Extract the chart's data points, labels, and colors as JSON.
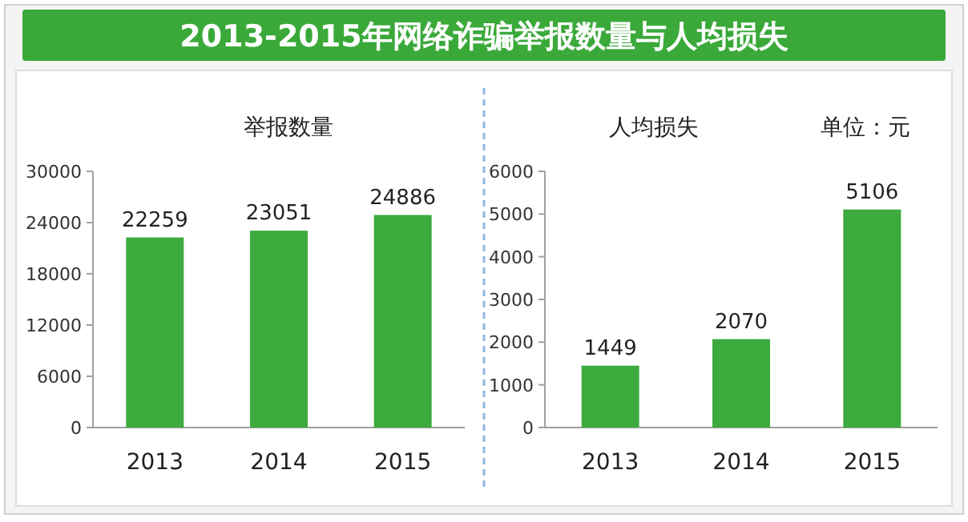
{
  "chart_data": [
    {
      "type": "bar",
      "title": "2013-2015年网络诈骗举报数量与人均损失",
      "subtitle": "举报数量",
      "categories": [
        "2013",
        "2014",
        "2015"
      ],
      "values": [
        22259,
        23051,
        24886
      ],
      "color": "#3daa3d",
      "ylim": [
        0,
        30000
      ],
      "yticks": [
        0,
        6000,
        12000,
        18000,
        24000,
        30000
      ],
      "data_labels": true,
      "grid": false
    },
    {
      "type": "bar",
      "subtitle": "人均损失",
      "annotations": [
        "单位：元"
      ],
      "categories": [
        "2013",
        "2014",
        "2015"
      ],
      "values": [
        1449,
        2070,
        5106
      ],
      "color": "#3daa3d",
      "ylim": [
        0,
        6000
      ],
      "yticks": [
        0,
        1000,
        2000,
        3000,
        4000,
        5000,
        6000
      ],
      "data_labels": true,
      "grid": false
    }
  ]
}
